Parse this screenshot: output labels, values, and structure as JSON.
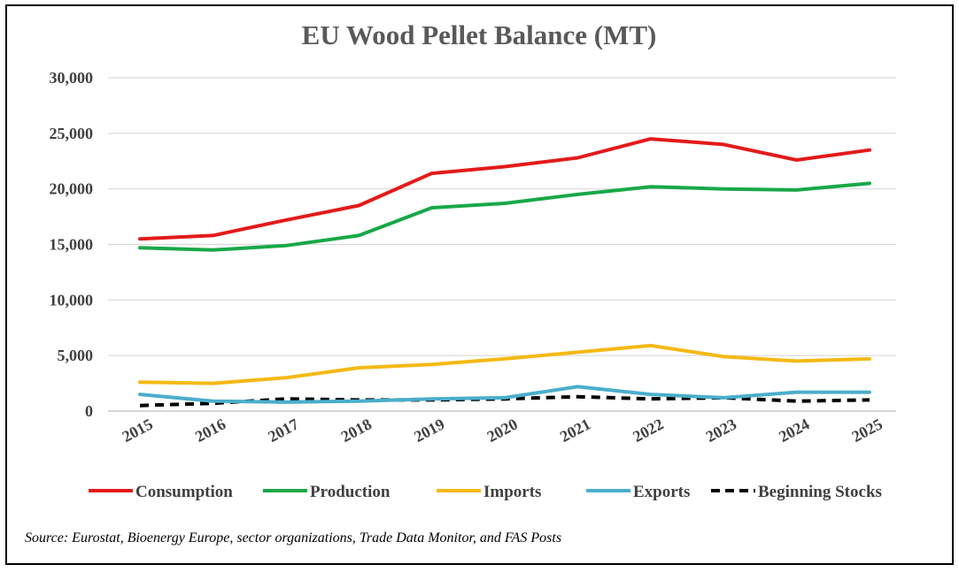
{
  "chart_data": {
    "type": "line",
    "title": "EU Wood Pellet Balance (MT)",
    "xlabel": "",
    "ylabel": "",
    "ylim": [
      0,
      30000
    ],
    "y_ticks": [
      0,
      5000,
      10000,
      15000,
      20000,
      25000,
      30000
    ],
    "y_tick_labels": [
      "0",
      "5,000",
      "10,000",
      "15,000",
      "20,000",
      "25,000",
      "30,000"
    ],
    "categories": [
      "2015",
      "2016",
      "2017",
      "2018",
      "2019",
      "2020",
      "2021",
      "2022",
      "2023",
      "2024",
      "2025"
    ],
    "grid": true,
    "legend_position": "bottom",
    "series": [
      {
        "name": "Consumption",
        "color": "#e41a1a",
        "dash": "solid",
        "values": [
          15500,
          15800,
          17200,
          18500,
          21400,
          22000,
          22800,
          24500,
          24000,
          22600,
          23500
        ]
      },
      {
        "name": "Production",
        "color": "#18a848",
        "dash": "solid",
        "values": [
          14700,
          14500,
          14900,
          15800,
          18300,
          18700,
          19500,
          20200,
          20000,
          19900,
          20500
        ]
      },
      {
        "name": "Imports",
        "color": "#f5b915",
        "dash": "solid",
        "values": [
          2600,
          2500,
          3000,
          3900,
          4200,
          4700,
          5300,
          5900,
          4900,
          4500,
          4700
        ]
      },
      {
        "name": "Exports",
        "color": "#4aaecb",
        "dash": "solid",
        "values": [
          1500,
          900,
          800,
          900,
          1100,
          1200,
          2200,
          1500,
          1200,
          1700,
          1700
        ]
      },
      {
        "name": "Beginning Stocks",
        "color": "#000000",
        "dash": "dashed",
        "values": [
          500,
          700,
          1100,
          1000,
          1000,
          1100,
          1300,
          1100,
          1200,
          900,
          1000
        ]
      }
    ],
    "source_note": "Source: Eurostat, Bioenergy Europe, sector organizations, Trade Data Monitor, and FAS Posts"
  }
}
